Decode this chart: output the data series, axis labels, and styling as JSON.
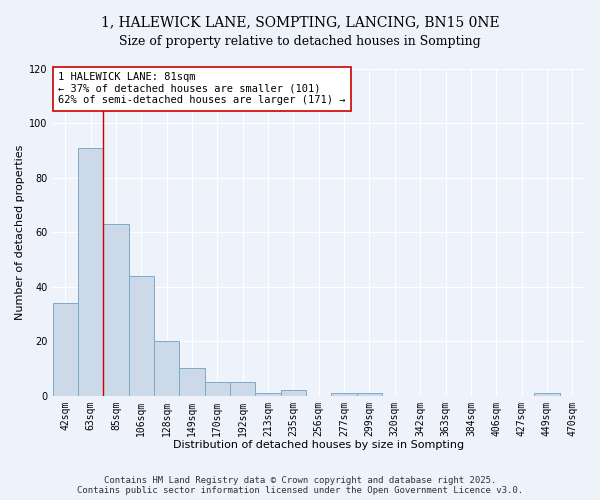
{
  "title": "1, HALEWICK LANE, SOMPTING, LANCING, BN15 0NE",
  "subtitle": "Size of property relative to detached houses in Sompting",
  "xlabel": "Distribution of detached houses by size in Sompting",
  "ylabel": "Number of detached properties",
  "categories": [
    "42sqm",
    "63sqm",
    "85sqm",
    "106sqm",
    "128sqm",
    "149sqm",
    "170sqm",
    "192sqm",
    "213sqm",
    "235sqm",
    "256sqm",
    "277sqm",
    "299sqm",
    "320sqm",
    "342sqm",
    "363sqm",
    "384sqm",
    "406sqm",
    "427sqm",
    "449sqm",
    "470sqm"
  ],
  "values": [
    34,
    91,
    63,
    44,
    20,
    10,
    5,
    5,
    1,
    2,
    0,
    1,
    1,
    0,
    0,
    0,
    0,
    0,
    0,
    1,
    0
  ],
  "bar_color": "#ccd9e8",
  "bar_edge_color": "#7aaac8",
  "background_color": "#eef2fb",
  "grid_color": "#ffffff",
  "annotation_text": "1 HALEWICK LANE: 81sqm\n← 37% of detached houses are smaller (101)\n62% of semi-detached houses are larger (171) →",
  "annotation_box_color": "#ffffff",
  "annotation_box_edge": "#cc0000",
  "vline_color": "#cc0000",
  "ylim": [
    0,
    120
  ],
  "yticks": [
    0,
    20,
    40,
    60,
    80,
    100,
    120
  ],
  "footer_line1": "Contains HM Land Registry data © Crown copyright and database right 2025.",
  "footer_line2": "Contains public sector information licensed under the Open Government Licence v3.0.",
  "title_fontsize": 10,
  "subtitle_fontsize": 9,
  "xlabel_fontsize": 8,
  "ylabel_fontsize": 8,
  "tick_fontsize": 7,
  "annotation_fontsize": 7.5,
  "footer_fontsize": 6.5
}
